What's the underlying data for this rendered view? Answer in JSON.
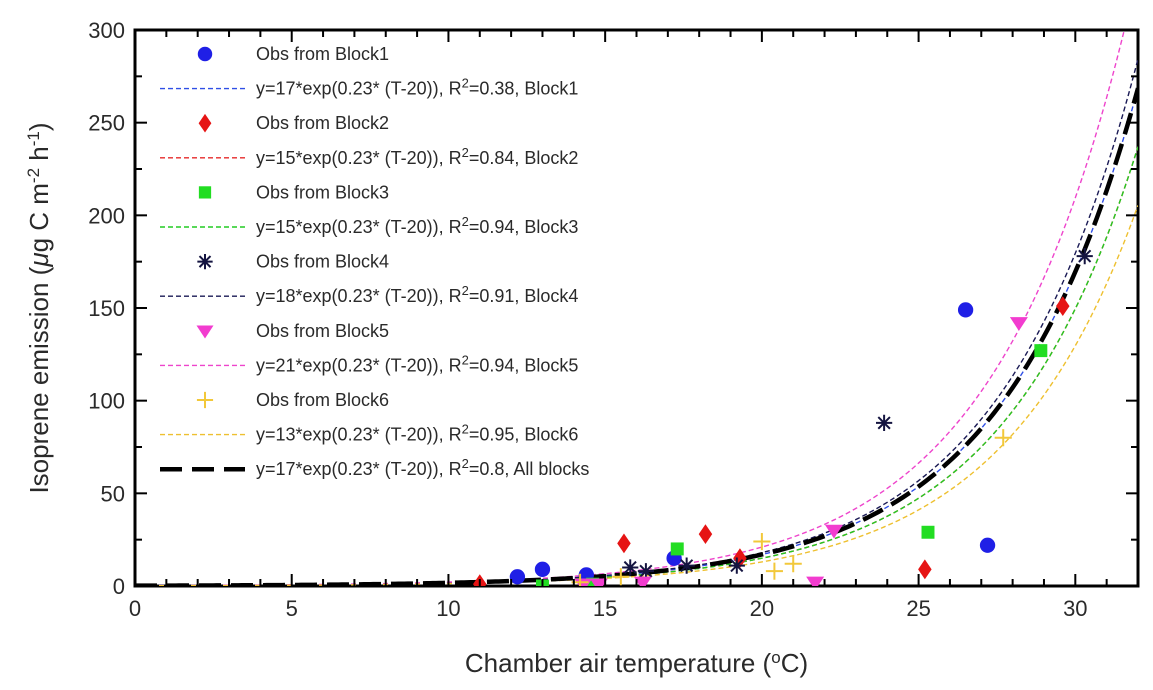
{
  "chart_data": {
    "type": "scatter",
    "x": {
      "label": "Chamber air temperature (",
      "label_sup": "o",
      "label_tail": "C)",
      "range": [
        0,
        32
      ],
      "ticks": [
        0,
        5,
        10,
        15,
        20,
        25,
        30
      ]
    },
    "y": {
      "label": "Isoprene emission (",
      "label_mu": "μ",
      "label_mid": "g C m",
      "label_sup1": "-2",
      "label_h": " h",
      "label_sup2": "-1",
      "label_tail": ")",
      "range": [
        0,
        300
      ],
      "ticks": [
        0,
        50,
        100,
        150,
        200,
        250,
        300
      ]
    },
    "grid": false,
    "legend_position": "top-left",
    "series": [
      {
        "name": "Obs from Block1",
        "kind": "scatter",
        "marker": "circle",
        "color": "#1f1fe6",
        "points": [
          [
            12.2,
            5
          ],
          [
            13.0,
            9
          ],
          [
            14.4,
            6
          ],
          [
            17.2,
            15
          ],
          [
            26.5,
            149
          ],
          [
            27.2,
            22
          ]
        ]
      },
      {
        "name": "Obs from Block2",
        "kind": "scatter",
        "marker": "diamond",
        "color": "#e61414",
        "points": [
          [
            11.0,
            1
          ],
          [
            15.6,
            23
          ],
          [
            18.2,
            28
          ],
          [
            19.3,
            15
          ],
          [
            25.2,
            9
          ],
          [
            29.6,
            151
          ]
        ]
      },
      {
        "name": "Obs from Block3",
        "kind": "scatter",
        "marker": "square",
        "color": "#22dd22",
        "points": [
          [
            13.0,
            0
          ],
          [
            14.6,
            1
          ],
          [
            17.3,
            20
          ],
          [
            25.3,
            29
          ],
          [
            28.9,
            127
          ]
        ]
      },
      {
        "name": "Obs from Block4",
        "kind": "scatter",
        "marker": "asterisk",
        "color": "#141440",
        "points": [
          [
            15.8,
            10
          ],
          [
            16.3,
            8
          ],
          [
            17.6,
            11
          ],
          [
            19.2,
            11
          ],
          [
            23.9,
            88
          ],
          [
            30.3,
            178
          ]
        ]
      },
      {
        "name": "Obs from Block5",
        "kind": "scatter",
        "marker": "triangle-down",
        "color": "#f23ccf",
        "points": [
          [
            14.3,
            1
          ],
          [
            14.8,
            1
          ],
          [
            16.2,
            2
          ],
          [
            21.7,
            2
          ],
          [
            22.3,
            30
          ],
          [
            28.2,
            142
          ]
        ]
      },
      {
        "name": "Obs from Block6",
        "kind": "scatter",
        "marker": "plus",
        "color": "#f2c83a",
        "points": [
          [
            14.2,
            2
          ],
          [
            15.5,
            5
          ],
          [
            20.0,
            24
          ],
          [
            20.4,
            8
          ],
          [
            21.0,
            12
          ],
          [
            27.7,
            80
          ]
        ]
      }
    ],
    "fits": [
      {
        "legend_pre": "y=17*exp(0.23* (T-20)), R",
        "legend_sup": "2",
        "legend_post": "=0.38, Block1",
        "a": 17,
        "b": 0.23,
        "color": "#2f4fe6",
        "style": "dotted",
        "after_series": 0
      },
      {
        "legend_pre": "y=15*exp(0.23* (T-20)), R",
        "legend_sup": "2",
        "legend_post": "=0.84, Block2",
        "a": 15,
        "b": 0.23,
        "color": "#e62a2a",
        "style": "dotted",
        "after_series": 1
      },
      {
        "legend_pre": "y=15*exp(0.23* (T-20)), R",
        "legend_sup": "2",
        "legend_post": "=0.94, Block3",
        "a": 15,
        "b": 0.23,
        "color": "#22cc22",
        "style": "dotted",
        "after_series": 2
      },
      {
        "legend_pre": "y=18*exp(0.23* (T-20)), R",
        "legend_sup": "2",
        "legend_post": "=0.91, Block4",
        "a": 18,
        "b": 0.23,
        "color": "#1a1a55",
        "style": "dotted",
        "after_series": 3
      },
      {
        "legend_pre": "y=21*exp(0.23* (T-20)), R",
        "legend_sup": "2",
        "legend_post": "=0.94, Block5",
        "a": 21,
        "b": 0.23,
        "color": "#ee44cc",
        "style": "dotted",
        "after_series": 4
      },
      {
        "legend_pre": "y=13*exp(0.23* (T-20)), R",
        "legend_sup": "2",
        "legend_post": "=0.95, Block6",
        "a": 13,
        "b": 0.23,
        "color": "#eec030",
        "style": "dotted",
        "after_series": 5
      },
      {
        "legend_pre": "y=17*exp(0.23* (T-20)), R",
        "legend_sup": "2",
        "legend_post": "=0.8, All blocks",
        "a": 17,
        "b": 0.23,
        "color": "#000000",
        "style": "dashed",
        "after_series": 6
      }
    ]
  }
}
